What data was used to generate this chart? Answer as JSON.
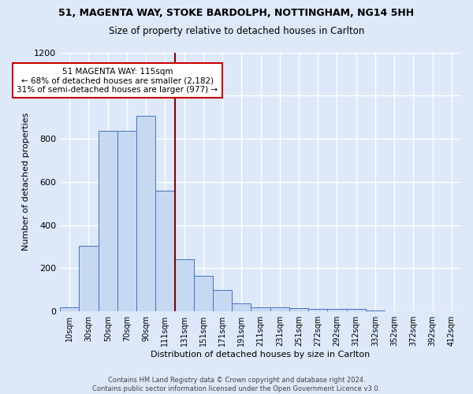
{
  "title1": "51, MAGENTA WAY, STOKE BARDOLPH, NOTTINGHAM, NG14 5HH",
  "title2": "Size of property relative to detached houses in Carlton",
  "xlabel": "Distribution of detached houses by size in Carlton",
  "ylabel": "Number of detached properties",
  "bin_labels": [
    "10sqm",
    "30sqm",
    "50sqm",
    "70sqm",
    "90sqm",
    "111sqm",
    "131sqm",
    "151sqm",
    "171sqm",
    "191sqm",
    "211sqm",
    "231sqm",
    "251sqm",
    "272sqm",
    "292sqm",
    "312sqm",
    "332sqm",
    "352sqm",
    "372sqm",
    "392sqm",
    "412sqm"
  ],
  "bar_heights": [
    20,
    305,
    835,
    835,
    905,
    560,
    240,
    165,
    100,
    35,
    20,
    20,
    15,
    10,
    10,
    10,
    5,
    0,
    0,
    0,
    0
  ],
  "bar_color": "#c6d9f1",
  "bar_edge_color": "#4472c4",
  "vline_x": 5.5,
  "vline_color": "#8b0000",
  "annotation_text": "51 MAGENTA WAY: 115sqm\n← 68% of detached houses are smaller (2,182)\n31% of semi-detached houses are larger (977) →",
  "annotation_box_color": "#ffffff",
  "annotation_box_edge": "#cc0000",
  "ylim": [
    0,
    1200
  ],
  "yticks": [
    0,
    200,
    400,
    600,
    800,
    1000,
    1200
  ],
  "footer": "Contains HM Land Registry data © Crown copyright and database right 2024.\nContains public sector information licensed under the Open Government Licence v3.0.",
  "bg_color": "#dde8f8",
  "grid_color": "#ffffff"
}
